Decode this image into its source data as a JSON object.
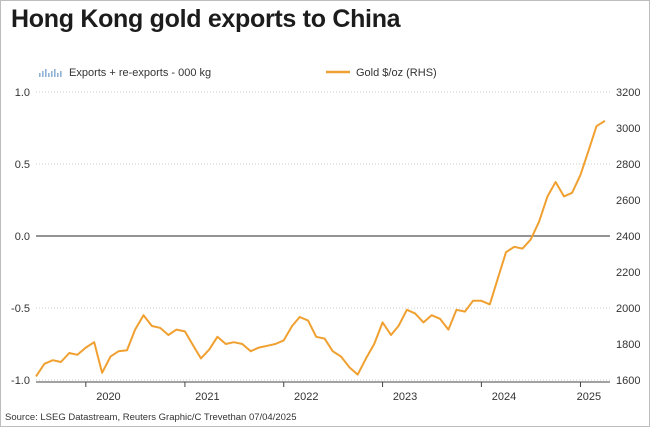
{
  "title": "Hong Kong gold exports to China",
  "source": "Source: LSEG Datastream, Reuters Graphic/C Trevethan 07/04/2025",
  "colors": {
    "gold": "#f0a030",
    "bars": "#8fb2d6",
    "zero_line": "#555555",
    "grid": "#cccccc"
  },
  "chart_data": {
    "type": "line",
    "legend_position": "top",
    "series": [
      {
        "name": "Exports + re-exports - 000 kg",
        "type": "bar",
        "axis": "left",
        "values": []
      },
      {
        "name": "Gold $/oz (RHS)",
        "type": "line",
        "axis": "right",
        "x": [
          "2019-07",
          "2019-08",
          "2019-09",
          "2019-10",
          "2019-11",
          "2019-12",
          "2020-01",
          "2020-02",
          "2020-03",
          "2020-04",
          "2020-05",
          "2020-06",
          "2020-07",
          "2020-08",
          "2020-09",
          "2020-10",
          "2020-11",
          "2020-12",
          "2021-01",
          "2021-02",
          "2021-03",
          "2021-04",
          "2021-05",
          "2021-06",
          "2021-07",
          "2021-08",
          "2021-09",
          "2021-10",
          "2021-11",
          "2021-12",
          "2022-01",
          "2022-02",
          "2022-03",
          "2022-04",
          "2022-05",
          "2022-06",
          "2022-07",
          "2022-08",
          "2022-09",
          "2022-10",
          "2022-11",
          "2022-12",
          "2023-01",
          "2023-02",
          "2023-03",
          "2023-04",
          "2023-05",
          "2023-06",
          "2023-07",
          "2023-08",
          "2023-09",
          "2023-10",
          "2023-11",
          "2023-12",
          "2024-01",
          "2024-02",
          "2024-03",
          "2024-04",
          "2024-05",
          "2024-06",
          "2024-07",
          "2024-08",
          "2024-09",
          "2024-10",
          "2024-11",
          "2024-12",
          "2025-01",
          "2025-02",
          "2025-03",
          "2025-04"
        ],
        "values": [
          1620,
          1690,
          1710,
          1700,
          1750,
          1740,
          1780,
          1810,
          1640,
          1730,
          1760,
          1765,
          1880,
          1960,
          1900,
          1890,
          1850,
          1880,
          1870,
          1790,
          1720,
          1770,
          1840,
          1800,
          1810,
          1800,
          1760,
          1780,
          1790,
          1800,
          1820,
          1900,
          1950,
          1930,
          1840,
          1830,
          1760,
          1730,
          1670,
          1630,
          1720,
          1800,
          1920,
          1850,
          1900,
          1990,
          1970,
          1920,
          1960,
          1940,
          1880,
          1990,
          1980,
          2040,
          2040,
          2020,
          2160,
          2310,
          2340,
          2330,
          2380,
          2480,
          2620,
          2700,
          2620,
          2640,
          2740,
          2880,
          3010,
          3040
        ]
      }
    ],
    "x_ticks": [
      "2020",
      "2021",
      "2022",
      "2023",
      "2024",
      "2025"
    ],
    "y_left": {
      "ticks": [
        "1.0",
        "0.5",
        "0.0",
        "-0.5",
        "-1.0"
      ],
      "range": [
        -1.0,
        1.0
      ]
    },
    "y_right": {
      "ticks": [
        "3200",
        "3000",
        "2800",
        "2600",
        "2400",
        "2200",
        "2000",
        "1800",
        "1600"
      ],
      "range": [
        1600,
        3200
      ]
    },
    "grid": true
  }
}
